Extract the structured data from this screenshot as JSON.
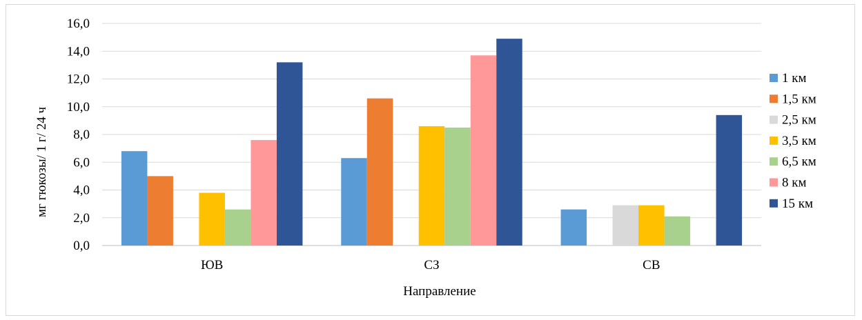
{
  "chart_data": {
    "type": "bar",
    "categories": [
      "ЮВ",
      "СЗ",
      "СВ"
    ],
    "series": [
      {
        "name": "1 км",
        "color": "#5B9BD5",
        "values": [
          6.8,
          6.3,
          2.6
        ]
      },
      {
        "name": "1,5 км",
        "color": "#ED7D31",
        "values": [
          5.0,
          10.6,
          null
        ]
      },
      {
        "name": "2,5 км",
        "color": "#D9D9D9",
        "values": [
          null,
          null,
          2.9
        ]
      },
      {
        "name": "3,5 км",
        "color": "#FFC000",
        "values": [
          3.8,
          8.6,
          2.9
        ]
      },
      {
        "name": "6,5 км",
        "color": "#A9D18E",
        "values": [
          2.6,
          8.5,
          2.1
        ]
      },
      {
        "name": "8 км",
        "color": "#FF9999",
        "values": [
          7.6,
          13.7,
          null
        ]
      },
      {
        "name": "15 км",
        "color": "#2F5597",
        "values": [
          13.2,
          14.9,
          9.4
        ]
      }
    ],
    "xlabel": "Направление",
    "ylabel": "мг гюкозы/ 1 г/ 24 ч",
    "ylim": [
      0,
      16
    ],
    "yticks": [
      "0,0",
      "2,0",
      "4,0",
      "6,0",
      "8,0",
      "10,0",
      "12,0",
      "14,0",
      "16,0"
    ],
    "grid": true,
    "legend": "right"
  }
}
